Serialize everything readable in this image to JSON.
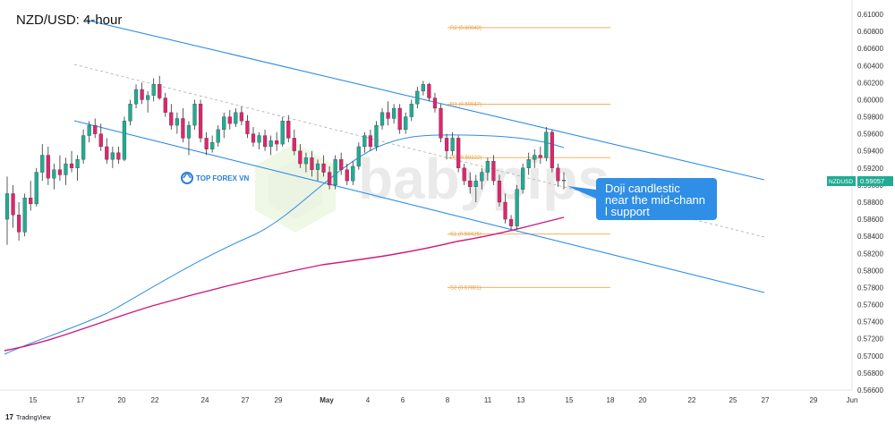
{
  "chart_data": {
    "type": "candlestick",
    "title": "NZD/USD: 4-hour",
    "symbol": "NZDUSD",
    "last_price": 0.59057,
    "ylim": [
      0.5656,
      0.611
    ],
    "y_ticks": [
      0.61,
      0.608,
      0.606,
      0.604,
      0.602,
      0.6,
      0.598,
      0.596,
      0.594,
      0.592,
      0.59,
      0.588,
      0.586,
      0.584,
      0.582,
      0.58,
      0.578,
      0.576,
      0.574,
      0.572,
      0.57,
      0.568,
      0.566
    ],
    "x_ticks": [
      "15",
      "17",
      "20",
      "22",
      "24",
      "27",
      "29",
      "May",
      "4",
      "6",
      "8",
      "11",
      "13",
      "15",
      "18",
      "20",
      "22",
      "25",
      "27",
      "29",
      "Jun"
    ],
    "pivots": [
      {
        "label": "R2 (0.60843)",
        "value": 0.60843
      },
      {
        "label": "R1 (0.59947)",
        "value": 0.59947
      },
      {
        "label": "PP (0.59322)",
        "value": 0.59322
      },
      {
        "label": "S1 (0.58426)",
        "value": 0.58426
      },
      {
        "label": "S2 (0.57801)",
        "value": 0.57801
      }
    ],
    "candles": [
      {
        "o": 0.586,
        "h": 0.591,
        "l": 0.583,
        "c": 0.589
      },
      {
        "o": 0.589,
        "h": 0.59,
        "l": 0.585,
        "c": 0.5865
      },
      {
        "o": 0.5865,
        "h": 0.588,
        "l": 0.5835,
        "c": 0.5845
      },
      {
        "o": 0.5845,
        "h": 0.589,
        "l": 0.584,
        "c": 0.5885
      },
      {
        "o": 0.5885,
        "h": 0.5905,
        "l": 0.587,
        "c": 0.5878
      },
      {
        "o": 0.5878,
        "h": 0.592,
        "l": 0.5875,
        "c": 0.5915
      },
      {
        "o": 0.5915,
        "h": 0.5948,
        "l": 0.5905,
        "c": 0.5935
      },
      {
        "o": 0.5935,
        "h": 0.5945,
        "l": 0.59,
        "c": 0.5908
      },
      {
        "o": 0.5908,
        "h": 0.5925,
        "l": 0.5895,
        "c": 0.5918
      },
      {
        "o": 0.5918,
        "h": 0.5935,
        "l": 0.5905,
        "c": 0.5912
      },
      {
        "o": 0.5912,
        "h": 0.5932,
        "l": 0.59,
        "c": 0.5925
      },
      {
        "o": 0.5925,
        "h": 0.594,
        "l": 0.5915,
        "c": 0.592
      },
      {
        "o": 0.592,
        "h": 0.5935,
        "l": 0.5905,
        "c": 0.593
      },
      {
        "o": 0.593,
        "h": 0.5965,
        "l": 0.5925,
        "c": 0.5958
      },
      {
        "o": 0.5958,
        "h": 0.5975,
        "l": 0.595,
        "c": 0.597
      },
      {
        "o": 0.597,
        "h": 0.5978,
        "l": 0.5955,
        "c": 0.596
      },
      {
        "o": 0.596,
        "h": 0.5972,
        "l": 0.594,
        "c": 0.5945
      },
      {
        "o": 0.5945,
        "h": 0.5955,
        "l": 0.5925,
        "c": 0.593
      },
      {
        "o": 0.593,
        "h": 0.5945,
        "l": 0.592,
        "c": 0.5938
      },
      {
        "o": 0.5938,
        "h": 0.5945,
        "l": 0.5925,
        "c": 0.593
      },
      {
        "o": 0.593,
        "h": 0.598,
        "l": 0.5928,
        "c": 0.5975
      },
      {
        "o": 0.5975,
        "h": 0.6,
        "l": 0.597,
        "c": 0.5995
      },
      {
        "o": 0.5995,
        "h": 0.6018,
        "l": 0.599,
        "c": 0.6012
      },
      {
        "o": 0.6012,
        "h": 0.602,
        "l": 0.5995,
        "c": 0.6
      },
      {
        "o": 0.6,
        "h": 0.601,
        "l": 0.5985,
        "c": 0.6005
      },
      {
        "o": 0.6005,
        "h": 0.6025,
        "l": 0.5998,
        "c": 0.6018
      },
      {
        "o": 0.6018,
        "h": 0.6028,
        "l": 0.6,
        "c": 0.6002
      },
      {
        "o": 0.6002,
        "h": 0.6008,
        "l": 0.598,
        "c": 0.5985
      },
      {
        "o": 0.5985,
        "h": 0.5995,
        "l": 0.5965,
        "c": 0.597
      },
      {
        "o": 0.597,
        "h": 0.5985,
        "l": 0.596,
        "c": 0.5978
      },
      {
        "o": 0.5978,
        "h": 0.599,
        "l": 0.595,
        "c": 0.5955
      },
      {
        "o": 0.5955,
        "h": 0.5975,
        "l": 0.5935,
        "c": 0.597
      },
      {
        "o": 0.597,
        "h": 0.6,
        "l": 0.5965,
        "c": 0.5995
      },
      {
        "o": 0.5995,
        "h": 0.6,
        "l": 0.595,
        "c": 0.5955
      },
      {
        "o": 0.5955,
        "h": 0.5962,
        "l": 0.5935,
        "c": 0.5942
      },
      {
        "o": 0.5942,
        "h": 0.5958,
        "l": 0.5938,
        "c": 0.595
      },
      {
        "o": 0.595,
        "h": 0.597,
        "l": 0.5945,
        "c": 0.5965
      },
      {
        "o": 0.5965,
        "h": 0.5985,
        "l": 0.5955,
        "c": 0.598
      },
      {
        "o": 0.598,
        "h": 0.5988,
        "l": 0.5965,
        "c": 0.5972
      },
      {
        "o": 0.5972,
        "h": 0.599,
        "l": 0.5968,
        "c": 0.5985
      },
      {
        "o": 0.5985,
        "h": 0.5992,
        "l": 0.597,
        "c": 0.5975
      },
      {
        "o": 0.5975,
        "h": 0.5982,
        "l": 0.5955,
        "c": 0.596
      },
      {
        "o": 0.596,
        "h": 0.5968,
        "l": 0.5945,
        "c": 0.595
      },
      {
        "o": 0.595,
        "h": 0.5962,
        "l": 0.5942,
        "c": 0.5958
      },
      {
        "o": 0.5958,
        "h": 0.5965,
        "l": 0.594,
        "c": 0.5945
      },
      {
        "o": 0.5945,
        "h": 0.5958,
        "l": 0.5935,
        "c": 0.5952
      },
      {
        "o": 0.5952,
        "h": 0.5962,
        "l": 0.594,
        "c": 0.5948
      },
      {
        "o": 0.5948,
        "h": 0.598,
        "l": 0.5945,
        "c": 0.5975
      },
      {
        "o": 0.5975,
        "h": 0.5982,
        "l": 0.595,
        "c": 0.5955
      },
      {
        "o": 0.5955,
        "h": 0.5965,
        "l": 0.5935,
        "c": 0.594
      },
      {
        "o": 0.594,
        "h": 0.5948,
        "l": 0.592,
        "c": 0.5925
      },
      {
        "o": 0.5925,
        "h": 0.5938,
        "l": 0.5915,
        "c": 0.5932
      },
      {
        "o": 0.5932,
        "h": 0.594,
        "l": 0.591,
        "c": 0.5918
      },
      {
        "o": 0.5918,
        "h": 0.593,
        "l": 0.5905,
        "c": 0.5925
      },
      {
        "o": 0.5925,
        "h": 0.5935,
        "l": 0.591,
        "c": 0.5915
      },
      {
        "o": 0.5915,
        "h": 0.5922,
        "l": 0.5895,
        "c": 0.59
      },
      {
        "o": 0.59,
        "h": 0.5935,
        "l": 0.5895,
        "c": 0.593
      },
      {
        "o": 0.593,
        "h": 0.5938,
        "l": 0.5912,
        "c": 0.5918
      },
      {
        "o": 0.5918,
        "h": 0.5925,
        "l": 0.59,
        "c": 0.5905
      },
      {
        "o": 0.5905,
        "h": 0.5928,
        "l": 0.59,
        "c": 0.5922
      },
      {
        "o": 0.5922,
        "h": 0.595,
        "l": 0.5918,
        "c": 0.5945
      },
      {
        "o": 0.5945,
        "h": 0.5962,
        "l": 0.5938,
        "c": 0.5958
      },
      {
        "o": 0.5958,
        "h": 0.5965,
        "l": 0.594,
        "c": 0.5945
      },
      {
        "o": 0.5945,
        "h": 0.5975,
        "l": 0.594,
        "c": 0.597
      },
      {
        "o": 0.597,
        "h": 0.599,
        "l": 0.5965,
        "c": 0.5985
      },
      {
        "o": 0.5985,
        "h": 0.5998,
        "l": 0.597,
        "c": 0.5978
      },
      {
        "o": 0.5978,
        "h": 0.5995,
        "l": 0.5972,
        "c": 0.599
      },
      {
        "o": 0.599,
        "h": 0.5995,
        "l": 0.596,
        "c": 0.5965
      },
      {
        "o": 0.5965,
        "h": 0.5985,
        "l": 0.596,
        "c": 0.598
      },
      {
        "o": 0.598,
        "h": 0.6,
        "l": 0.5975,
        "c": 0.5995
      },
      {
        "o": 0.5995,
        "h": 0.6015,
        "l": 0.599,
        "c": 0.601
      },
      {
        "o": 0.601,
        "h": 0.6022,
        "l": 0.6005,
        "c": 0.6018
      },
      {
        "o": 0.6018,
        "h": 0.602,
        "l": 0.5998,
        "c": 0.6002
      },
      {
        "o": 0.6002,
        "h": 0.6008,
        "l": 0.5985,
        "c": 0.599
      },
      {
        "o": 0.599,
        "h": 0.5995,
        "l": 0.595,
        "c": 0.5955
      },
      {
        "o": 0.5955,
        "h": 0.596,
        "l": 0.593,
        "c": 0.594
      },
      {
        "o": 0.594,
        "h": 0.5962,
        "l": 0.5935,
        "c": 0.5955
      },
      {
        "o": 0.5955,
        "h": 0.5958,
        "l": 0.5915,
        "c": 0.592
      },
      {
        "o": 0.592,
        "h": 0.5925,
        "l": 0.59,
        "c": 0.5905
      },
      {
        "o": 0.5905,
        "h": 0.5915,
        "l": 0.589,
        "c": 0.5898
      },
      {
        "o": 0.5898,
        "h": 0.5912,
        "l": 0.588,
        "c": 0.5905
      },
      {
        "o": 0.5905,
        "h": 0.592,
        "l": 0.5895,
        "c": 0.5915
      },
      {
        "o": 0.5915,
        "h": 0.5932,
        "l": 0.5905,
        "c": 0.5928
      },
      {
        "o": 0.5928,
        "h": 0.5935,
        "l": 0.59,
        "c": 0.5905
      },
      {
        "o": 0.5905,
        "h": 0.5912,
        "l": 0.5875,
        "c": 0.588
      },
      {
        "o": 0.588,
        "h": 0.589,
        "l": 0.5855,
        "c": 0.586
      },
      {
        "o": 0.586,
        "h": 0.5865,
        "l": 0.5848,
        "c": 0.5852
      },
      {
        "o": 0.5852,
        "h": 0.59,
        "l": 0.5848,
        "c": 0.5895
      },
      {
        "o": 0.5895,
        "h": 0.5925,
        "l": 0.589,
        "c": 0.592
      },
      {
        "o": 0.592,
        "h": 0.5938,
        "l": 0.5912,
        "c": 0.593
      },
      {
        "o": 0.593,
        "h": 0.5942,
        "l": 0.592,
        "c": 0.5935
      },
      {
        "o": 0.5935,
        "h": 0.5945,
        "l": 0.5925,
        "c": 0.5932
      },
      {
        "o": 0.5932,
        "h": 0.5968,
        "l": 0.5928,
        "c": 0.5962
      },
      {
        "o": 0.5962,
        "h": 0.5965,
        "l": 0.5915,
        "c": 0.592
      },
      {
        "o": 0.592,
        "h": 0.5925,
        "l": 0.5898,
        "c": 0.5905
      },
      {
        "o": 0.5905,
        "h": 0.5915,
        "l": 0.5895,
        "c": 0.5906
      }
    ],
    "annotation": "Doji candlestick near the mid-channel support",
    "watermarks": [
      "TOP FOREX VN",
      "babypips"
    ],
    "footer": "TradingView",
    "colors": {
      "up": "#22ab94",
      "down": "#e0256e",
      "channel": "#2e8de6",
      "ma50": "#2e8de6",
      "ma200": "#d1197b",
      "pivot": "#f0a64b",
      "callout": "#2f8ee6"
    }
  }
}
